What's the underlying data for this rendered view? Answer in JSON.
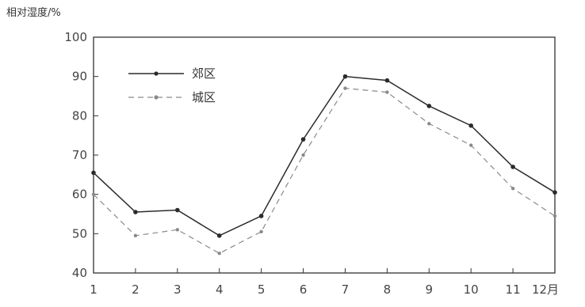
{
  "chart_data": {
    "type": "line",
    "title": "",
    "ylabel": "相对湿度/%",
    "xlabel": "",
    "x_unit_suffix": "月",
    "categories": [
      "1",
      "2",
      "3",
      "4",
      "5",
      "6",
      "7",
      "8",
      "9",
      "10",
      "11",
      "12"
    ],
    "ylim": [
      40,
      100
    ],
    "yticks": [
      40,
      50,
      60,
      70,
      80,
      90,
      100
    ],
    "grid": false,
    "legend_position": "top-left",
    "series": [
      {
        "name": "郊区",
        "style": "solid",
        "color": "#2b2b2b",
        "values": [
          65.5,
          55.5,
          56,
          49.5,
          54.5,
          74,
          90,
          89,
          82.5,
          77.5,
          67,
          60.5
        ]
      },
      {
        "name": "城区",
        "style": "dashed",
        "color": "#8a8a8a",
        "values": [
          60,
          49.5,
          51,
          45,
          50.5,
          70,
          87,
          86,
          78,
          72.5,
          61.5,
          54.5
        ]
      }
    ]
  }
}
